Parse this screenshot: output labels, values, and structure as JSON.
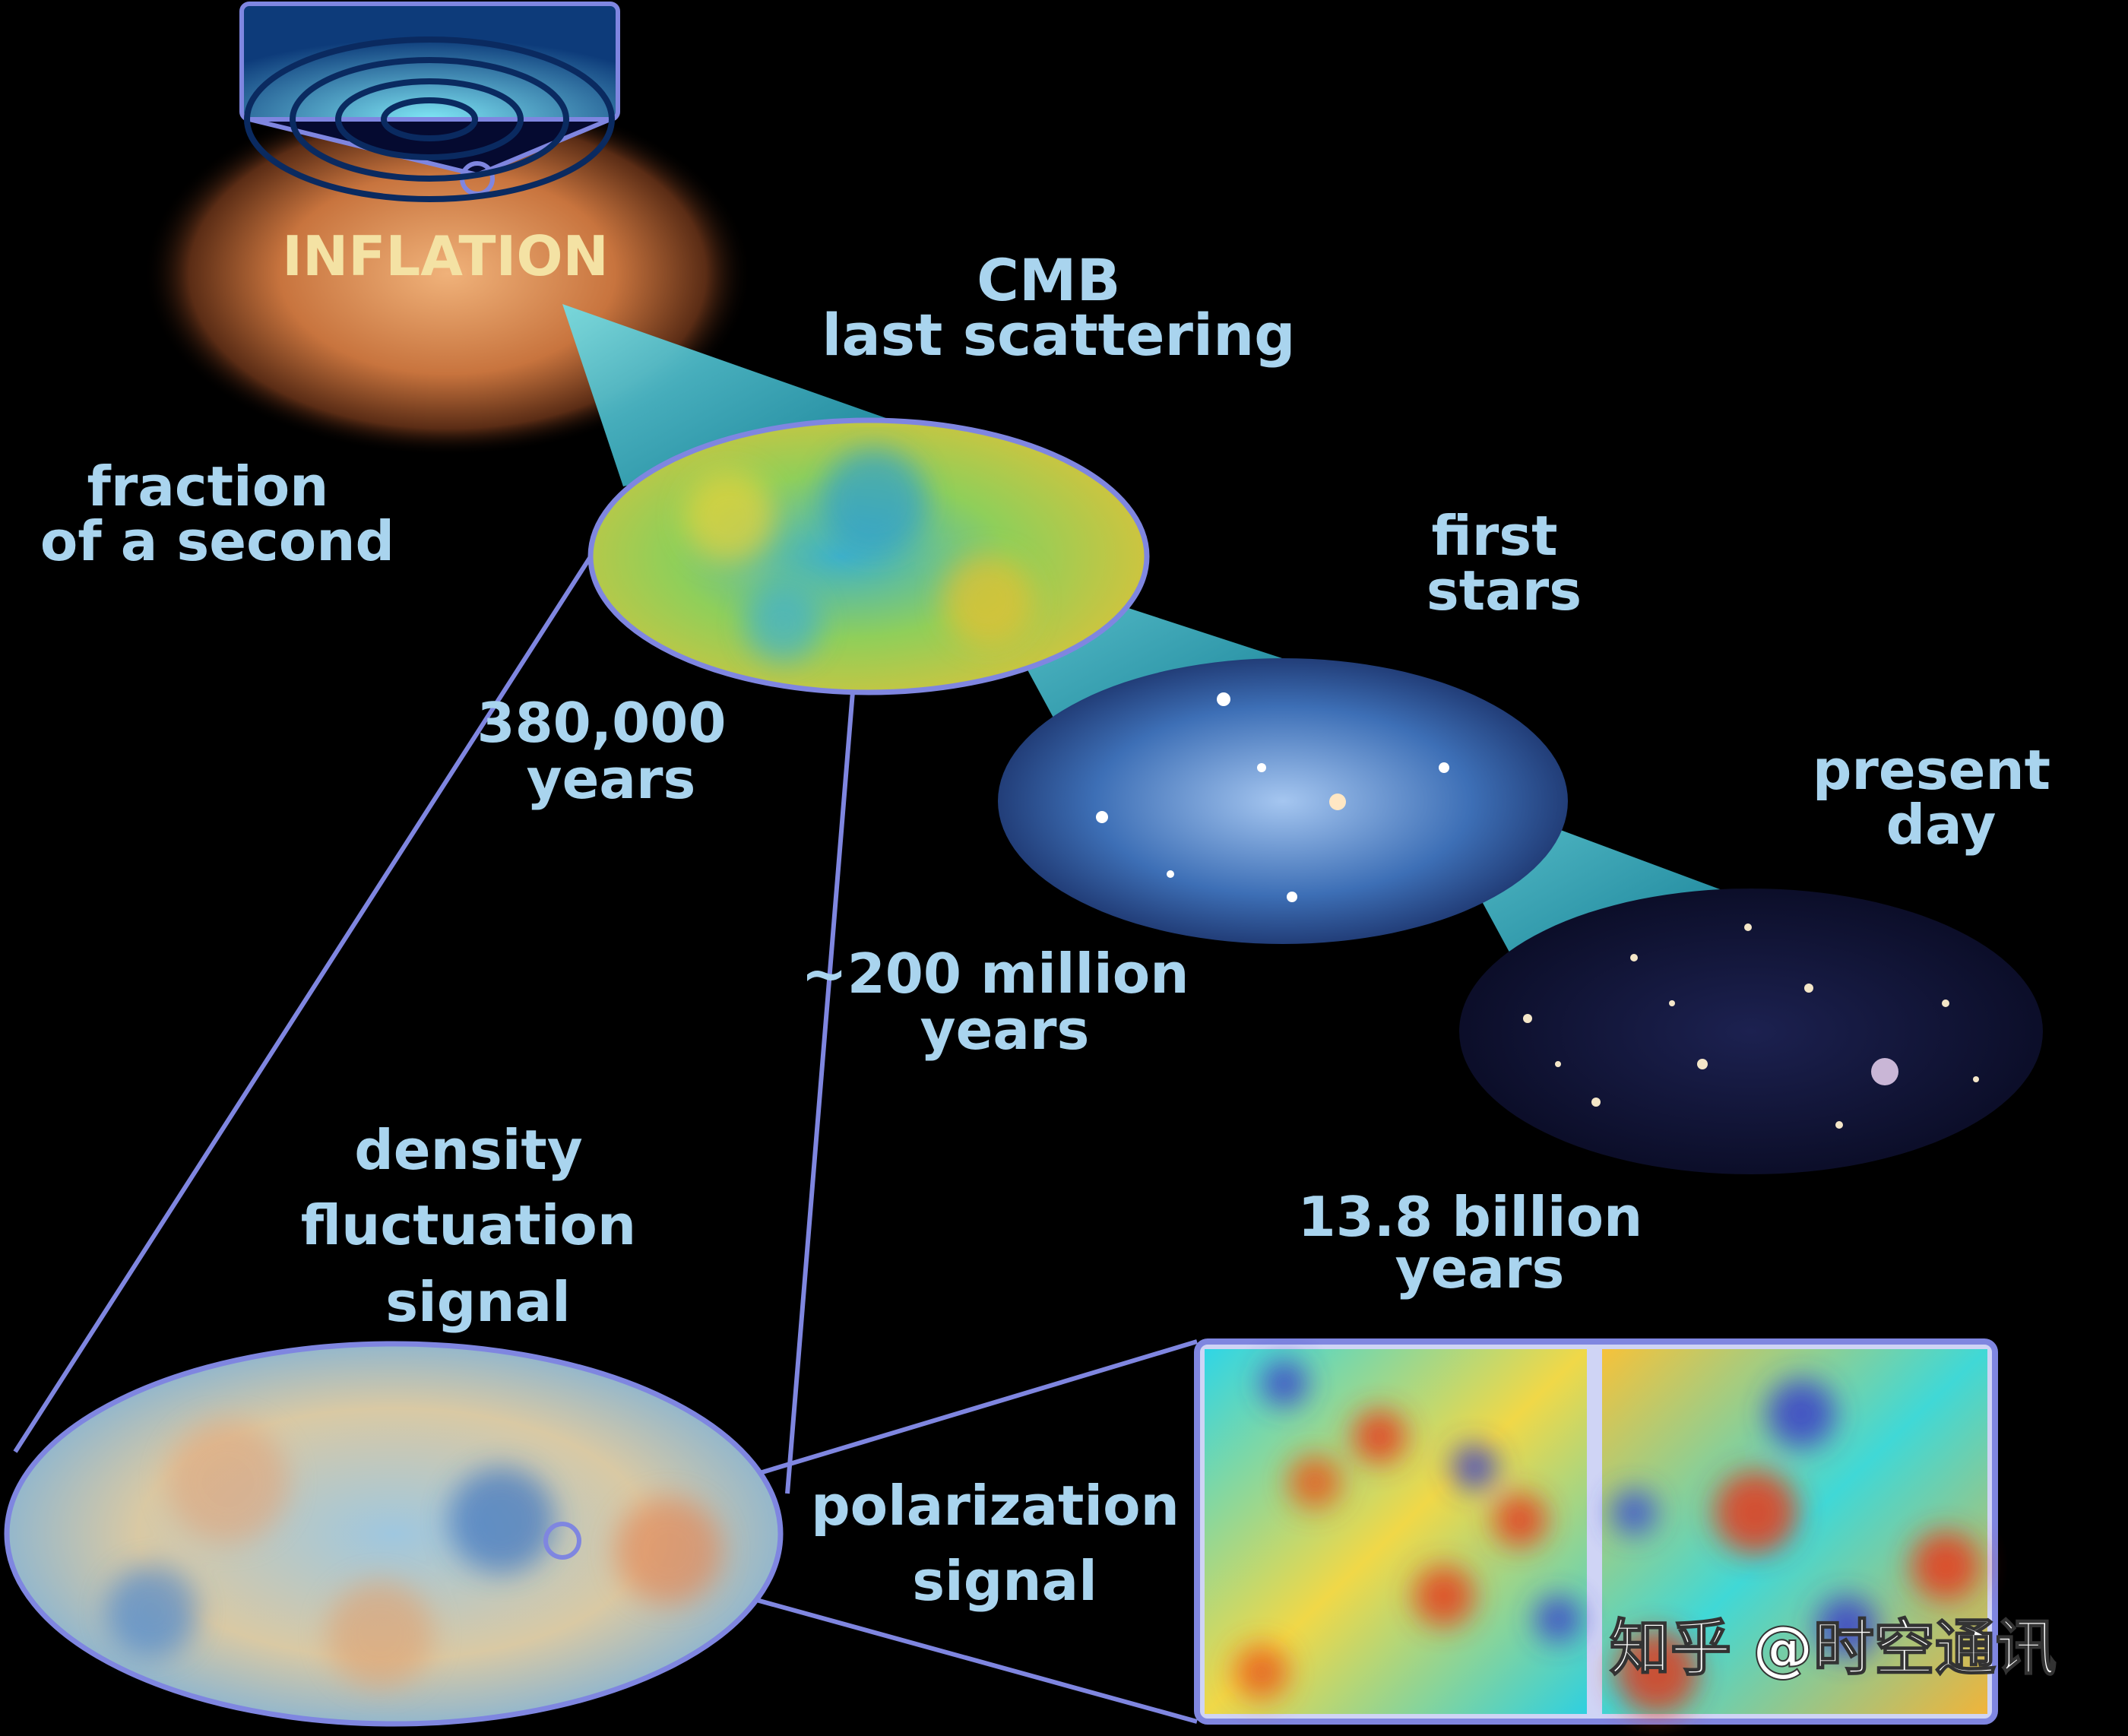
{
  "labels": {
    "inflation": "INFLATION",
    "cmb_line1": "CMB",
    "cmb_line2": "last scattering",
    "fraction_line1": "fraction",
    "fraction_line2": "of a second",
    "years380_line1": "380,000",
    "years380_line2": "years",
    "first_stars_line1": "first",
    "first_stars_line2": "stars",
    "present_line1": "present",
    "present_line2": "day",
    "m200_line1": "~200 million",
    "m200_line2": "years",
    "b138_line1": "13.8 billion",
    "b138_line2": "years",
    "density_line1": "density",
    "density_line2": "fluctuation",
    "density_line3": "signal",
    "polar_line1": "polarization",
    "polar_line2": "signal"
  },
  "watermark": "知乎 @时空通讯",
  "colors": {
    "label": "#a9d4ee",
    "inflation_label": "#f4e2a4",
    "outline": "#7f86e0",
    "cone": "#3fc9d6"
  }
}
